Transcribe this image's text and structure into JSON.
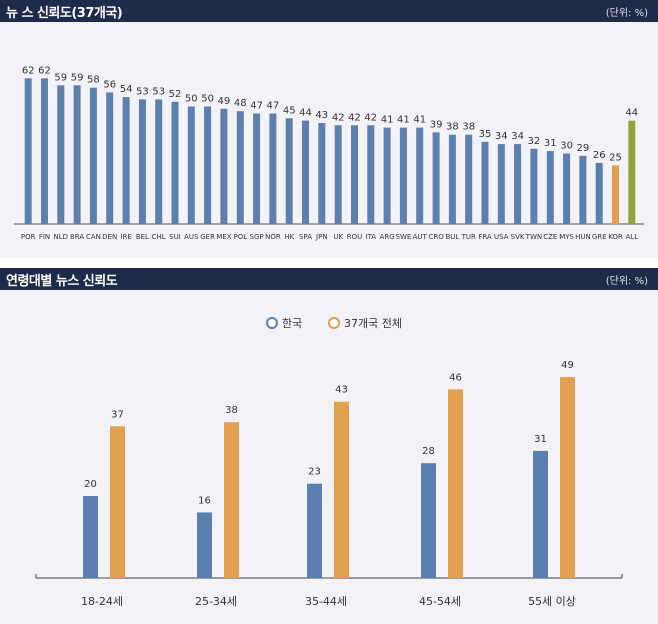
{
  "top_chart": {
    "title": "뉴 스 신뢰도(37개국)",
    "unit": "(단위: %)"
  },
  "bottom_chart": {
    "title": "연령대별 뉴스 신뢰도",
    "unit": "(단위: %)"
  },
  "colors": {
    "header_bg": "#1f2b4b",
    "panel_bg": "#f3f3f7",
    "blue": "#5b7fae",
    "orange": "#e2a04f",
    "green": "#8fa53a"
  },
  "chart_data": [
    {
      "type": "bar",
      "title": "뉴 스 신뢰도(37개국)",
      "categories": [
        "POR",
        "FIN",
        "NLD",
        "BRA",
        "CAN",
        "DEN",
        "IRE",
        "BEL",
        "CHL",
        "SUI",
        "AUS",
        "GER",
        "MEX",
        "POL",
        "SGP",
        "NOR",
        "HK",
        "SPA",
        "JPN",
        "UK",
        "ROU",
        "ITA",
        "ARG",
        "SWE",
        "AUT",
        "CRO",
        "BUL",
        "TUR",
        "FRA",
        "USA",
        "SVK",
        "TWN",
        "CZE",
        "MYS",
        "HUN",
        "GRE",
        "KOR",
        "ALL"
      ],
      "values": [
        62,
        62,
        59,
        59,
        58,
        56,
        54,
        53,
        53,
        52,
        50,
        50,
        49,
        48,
        47,
        47,
        45,
        44,
        43,
        42,
        42,
        42,
        41,
        41,
        41,
        39,
        38,
        38,
        35,
        34,
        34,
        32,
        31,
        30,
        29,
        26,
        25,
        44
      ],
      "highlight": {
        "KOR": "#e2a04f",
        "ALL": "#8fa53a"
      },
      "ylim": [
        0,
        70
      ],
      "grid": false
    },
    {
      "type": "bar",
      "title": "연령대별 뉴스 신뢰도",
      "categories": [
        "18-24세",
        "25-34세",
        "35-44세",
        "45-54세",
        "55세 이상"
      ],
      "series": [
        {
          "name": "한국",
          "values": [
            20,
            16,
            23,
            28,
            31
          ],
          "color": "#5b7fae"
        },
        {
          "name": "37개국 전체",
          "values": [
            37,
            38,
            43,
            46,
            49
          ],
          "color": "#e2a04f"
        }
      ],
      "ylim": [
        0,
        55
      ],
      "legend": "top-center",
      "grid": false
    }
  ]
}
